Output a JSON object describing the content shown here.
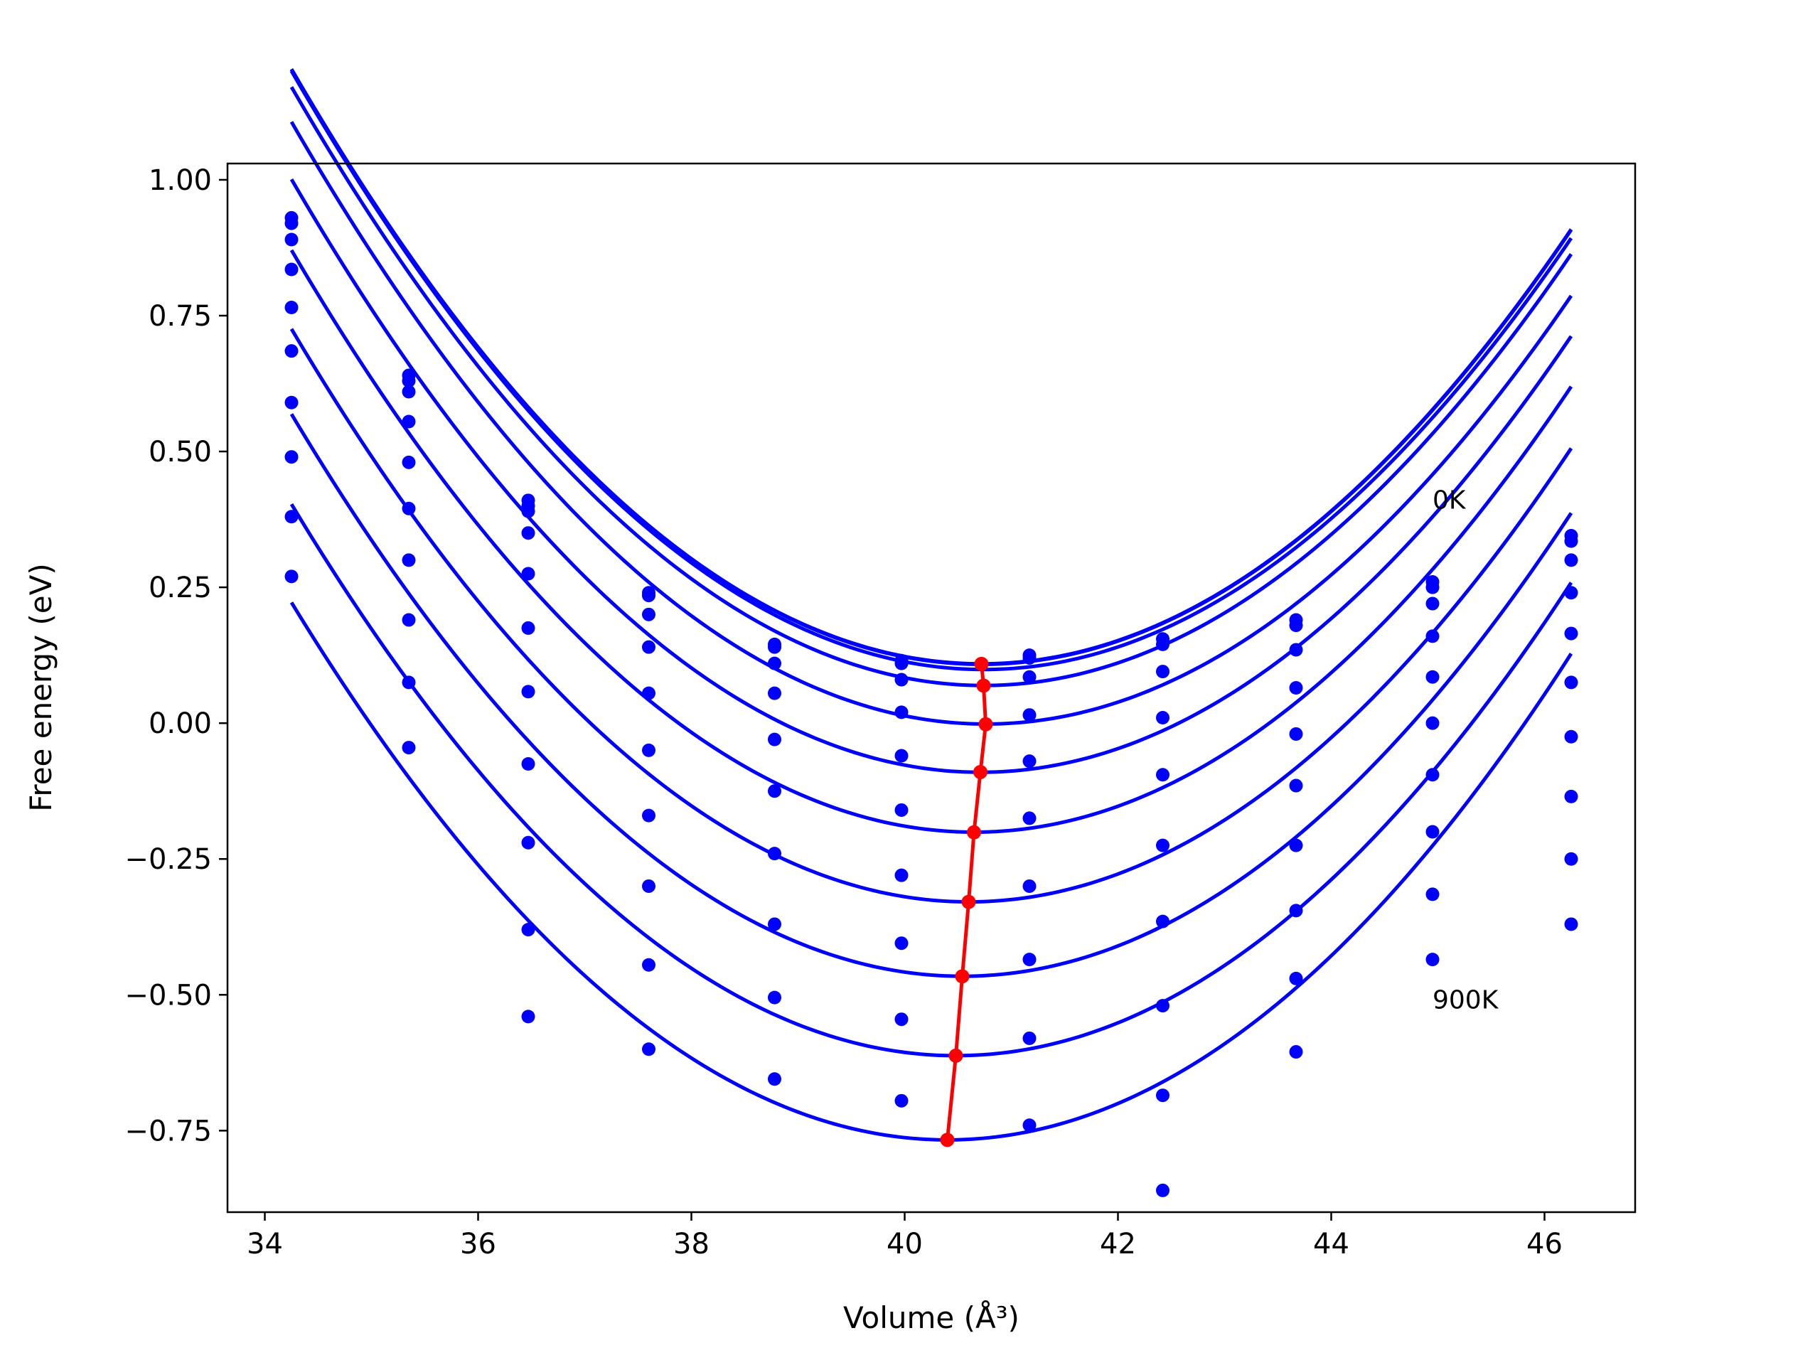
{
  "chart_data": {
    "type": "line",
    "xlabel": "Volume (Å³)",
    "ylabel": "Free energy (eV)",
    "xlim": [
      33.65,
      46.85
    ],
    "ylim": [
      -0.9,
      1.03
    ],
    "xticks": [
      34,
      36,
      38,
      40,
      42,
      44,
      46
    ],
    "xtick_labels": [
      "34",
      "36",
      "38",
      "40",
      "42",
      "44",
      "46"
    ],
    "yticks": [
      -0.75,
      -0.5,
      -0.25,
      0.0,
      0.25,
      0.5,
      0.75,
      1.0
    ],
    "ytick_labels": [
      "−0.75",
      "−0.50",
      "−0.25",
      "0.00",
      "0.25",
      "0.50",
      "0.75",
      "1.00"
    ],
    "grid": false,
    "annotations": [
      {
        "text": "0K",
        "x": 44.95,
        "y": 0.395
      },
      {
        "text": "900K",
        "x": 44.95,
        "y": -0.525
      }
    ],
    "colors": {
      "series": "#0000ff",
      "minima": "#ff0000"
    },
    "volumes": [
      34.25,
      35.35,
      36.47,
      37.6,
      38.78,
      39.97,
      41.17,
      42.42,
      43.67,
      44.95,
      46.25
    ],
    "curves": [
      {
        "a": 0.1092,
        "b": 40.72,
        "c": 0.02615
      },
      {
        "a": 0.1082,
        "b": 40.72,
        "c": 0.02615
      },
      {
        "a": 0.0987,
        "b": 40.74,
        "c": 0.02615
      },
      {
        "a": 0.0693,
        "b": 40.74,
        "c": 0.02615
      },
      {
        "a": -0.0016,
        "b": 40.76,
        "c": 0.02615
      },
      {
        "a": -0.0904,
        "b": 40.71,
        "c": 0.02615
      },
      {
        "a": -0.2006,
        "b": 40.65,
        "c": 0.02615
      },
      {
        "a": -0.3289,
        "b": 40.6,
        "c": 0.02615
      },
      {
        "a": -0.4658,
        "b": 40.54,
        "c": 0.02615
      },
      {
        "a": -0.612,
        "b": 40.48,
        "c": 0.02615
      },
      {
        "a": -0.767,
        "b": 40.4,
        "c": 0.02615
      }
    ],
    "points": [
      [
        0.93,
        0.64,
        0.41,
        0.235,
        0.145,
        0.115,
        0.125,
        0.155,
        0.19,
        0.26,
        0.345
      ],
      [
        0.92,
        0.63,
        0.4,
        0.24,
        0.14,
        0.11,
        0.12,
        0.145,
        0.18,
        0.25,
        0.335
      ],
      [
        0.89,
        0.61,
        0.39,
        0.2,
        0.11,
        0.08,
        0.085,
        0.095,
        0.135,
        0.22,
        0.3
      ],
      [
        0.835,
        0.555,
        0.35,
        0.14,
        0.055,
        0.02,
        0.015,
        0.01,
        0.065,
        0.16,
        0.24
      ],
      [
        0.765,
        0.48,
        0.275,
        0.055,
        -0.03,
        -0.06,
        -0.07,
        -0.095,
        -0.02,
        0.085,
        0.165
      ],
      [
        0.685,
        0.395,
        0.175,
        -0.05,
        -0.125,
        -0.16,
        -0.175,
        -0.225,
        -0.115,
        0.0,
        0.075
      ],
      [
        0.59,
        0.3,
        0.058,
        -0.17,
        -0.24,
        -0.28,
        -0.3,
        -0.365,
        -0.225,
        -0.095,
        -0.025
      ],
      [
        0.49,
        0.19,
        -0.075,
        -0.3,
        -0.37,
        -0.405,
        -0.435,
        -0.52,
        -0.345,
        -0.2,
        -0.135
      ],
      [
        0.38,
        0.075,
        -0.22,
        -0.445,
        -0.505,
        -0.545,
        -0.58,
        -0.685,
        -0.47,
        -0.315,
        -0.25
      ],
      [
        0.27,
        -0.045,
        -0.38,
        -0.6,
        -0.655,
        -0.695,
        -0.74,
        -0.86,
        -0.605,
        -0.435,
        -0.37
      ],
      [
        null,
        null,
        -0.54,
        null,
        null,
        null,
        null,
        null,
        null,
        null,
        null
      ]
    ],
    "minima": [
      {
        "x": 40.72,
        "y": 0.109
      },
      {
        "x": 40.74,
        "y": 0.069
      },
      {
        "x": 40.76,
        "y": -0.002
      },
      {
        "x": 40.71,
        "y": -0.09
      },
      {
        "x": 40.65,
        "y": -0.201
      },
      {
        "x": 40.6,
        "y": -0.329
      },
      {
        "x": 40.54,
        "y": -0.466
      },
      {
        "x": 40.48,
        "y": -0.612
      },
      {
        "x": 40.4,
        "y": -0.767
      }
    ]
  }
}
